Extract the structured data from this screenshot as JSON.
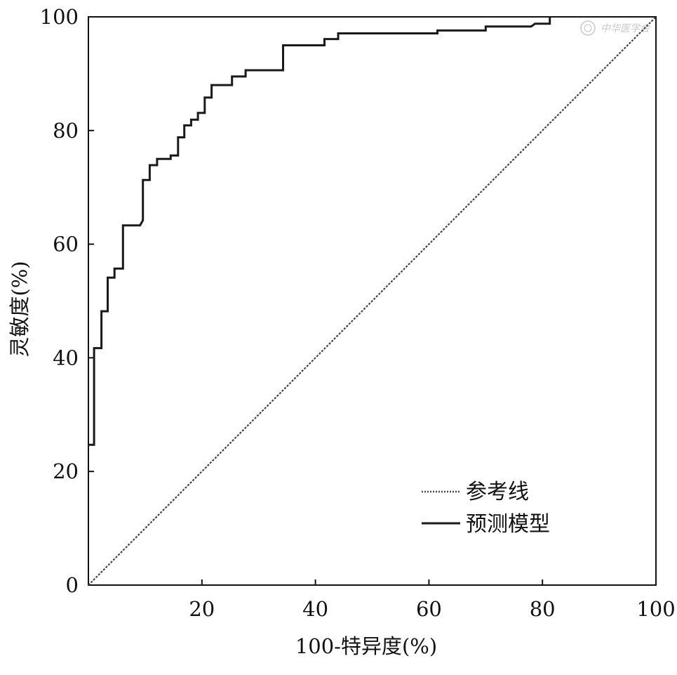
{
  "chart_data": {
    "type": "line",
    "title": "",
    "xlabel": "100-特异度(%)",
    "ylabel": "灵敏度(%)",
    "xlim": [
      0,
      100
    ],
    "ylim": [
      0,
      100
    ],
    "grid": false,
    "legend_position": "bottom-right",
    "x_ticks": [
      "20",
      "40",
      "60",
      "80",
      "100"
    ],
    "y_ticks": [
      "0",
      "20",
      "40",
      "60",
      "80",
      "100"
    ],
    "series": [
      {
        "name": "参考线",
        "style": "dotted",
        "color": "#444444",
        "points": [
          [
            0,
            0
          ],
          [
            100,
            100
          ]
        ]
      },
      {
        "name": "预测模型",
        "style": "solid",
        "color": "#1a1a1a",
        "points": [
          [
            0,
            24.7
          ],
          [
            1,
            24.7
          ],
          [
            1,
            41.7
          ],
          [
            2.3,
            41.7
          ],
          [
            2.3,
            48.2
          ],
          [
            3.4,
            48.2
          ],
          [
            3.4,
            54.1
          ],
          [
            4.6,
            54.1
          ],
          [
            4.6,
            55.7
          ],
          [
            6.1,
            55.7
          ],
          [
            6.1,
            63.3
          ],
          [
            9.1,
            63.3
          ],
          [
            9.6,
            64.2
          ],
          [
            9.6,
            71.3
          ],
          [
            10.8,
            71.3
          ],
          [
            10.8,
            73.9
          ],
          [
            12.1,
            73.9
          ],
          [
            12.1,
            75.0
          ],
          [
            14.5,
            75.0
          ],
          [
            14.5,
            75.6
          ],
          [
            15.8,
            75.6
          ],
          [
            15.8,
            78.8
          ],
          [
            16.9,
            78.8
          ],
          [
            16.9,
            80.9
          ],
          [
            18.1,
            80.9
          ],
          [
            18.1,
            81.9
          ],
          [
            19.3,
            81.9
          ],
          [
            19.3,
            83.1
          ],
          [
            20.5,
            83.1
          ],
          [
            20.5,
            85.8
          ],
          [
            21.7,
            85.8
          ],
          [
            21.7,
            88.0
          ],
          [
            25.3,
            88.0
          ],
          [
            25.3,
            89.5
          ],
          [
            27.7,
            89.5
          ],
          [
            27.7,
            90.6
          ],
          [
            34.3,
            90.6
          ],
          [
            34.3,
            95.0
          ],
          [
            41.6,
            95.0
          ],
          [
            41.6,
            96.1
          ],
          [
            44.0,
            96.1
          ],
          [
            44.0,
            97.1
          ],
          [
            61.5,
            97.1
          ],
          [
            61.5,
            97.6
          ],
          [
            70.0,
            97.6
          ],
          [
            70.0,
            98.3
          ],
          [
            78.0,
            98.3
          ],
          [
            78.7,
            98.8
          ],
          [
            81.3,
            98.8
          ],
          [
            81.3,
            100
          ]
        ]
      }
    ]
  },
  "watermark": {
    "text": "中华医学会"
  }
}
